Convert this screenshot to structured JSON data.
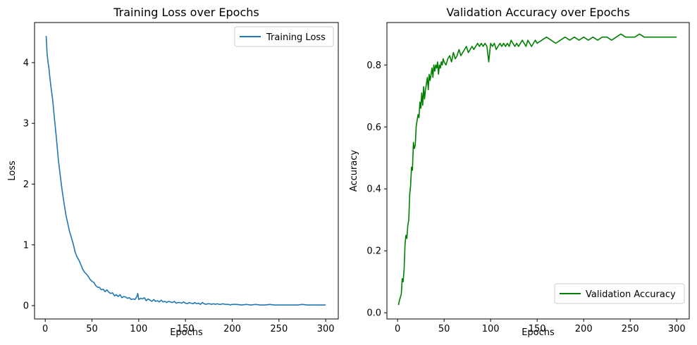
{
  "chart_data": [
    {
      "type": "line",
      "title": "Training Loss over Epochs",
      "xlabel": "Epochs",
      "ylabel": "Loss",
      "xlim": [
        -11.45,
        313.45
      ],
      "ylim": [
        -0.22,
        4.66
      ],
      "xticks": [
        0,
        50,
        100,
        150,
        200,
        250,
        300
      ],
      "yticks": [
        0,
        1,
        2,
        3,
        4
      ],
      "grid": false,
      "legend_position": "upper-right",
      "series": [
        {
          "name": "Training Loss",
          "color": "#1f77b4",
          "x": [
            1,
            2,
            3,
            4,
            5,
            6,
            8,
            10,
            12,
            14,
            16,
            18,
            20,
            22,
            24,
            26,
            28,
            30,
            32,
            34,
            36,
            38,
            40,
            42,
            44,
            46,
            48,
            50,
            52,
            54,
            56,
            58,
            60,
            62,
            64,
            66,
            68,
            70,
            72,
            74,
            76,
            78,
            80,
            82,
            84,
            86,
            88,
            90,
            92,
            94,
            96,
            98,
            99,
            100,
            102,
            104,
            106,
            108,
            110,
            112,
            114,
            116,
            118,
            120,
            122,
            124,
            126,
            128,
            130,
            132,
            134,
            136,
            138,
            140,
            142,
            144,
            146,
            148,
            150,
            152,
            154,
            156,
            158,
            160,
            162,
            164,
            166,
            168,
            170,
            172,
            174,
            176,
            178,
            180,
            182,
            184,
            186,
            188,
            190,
            192,
            194,
            196,
            198,
            200,
            205,
            210,
            215,
            220,
            225,
            230,
            235,
            240,
            245,
            250,
            255,
            260,
            265,
            270,
            275,
            280,
            285,
            290,
            295,
            300
          ],
          "y": [
            4.44,
            4.15,
            4.0,
            3.9,
            3.75,
            3.62,
            3.38,
            3.05,
            2.75,
            2.4,
            2.15,
            1.9,
            1.7,
            1.5,
            1.36,
            1.22,
            1.12,
            1.01,
            0.88,
            0.8,
            0.75,
            0.68,
            0.6,
            0.55,
            0.52,
            0.48,
            0.43,
            0.4,
            0.38,
            0.33,
            0.3,
            0.3,
            0.26,
            0.27,
            0.23,
            0.26,
            0.22,
            0.2,
            0.21,
            0.16,
            0.18,
            0.15,
            0.18,
            0.13,
            0.15,
            0.14,
            0.12,
            0.13,
            0.1,
            0.11,
            0.1,
            0.15,
            0.2,
            0.1,
            0.12,
            0.11,
            0.13,
            0.08,
            0.11,
            0.09,
            0.07,
            0.1,
            0.07,
            0.08,
            0.06,
            0.09,
            0.06,
            0.07,
            0.05,
            0.07,
            0.06,
            0.05,
            0.07,
            0.04,
            0.05,
            0.05,
            0.04,
            0.06,
            0.04,
            0.03,
            0.05,
            0.04,
            0.03,
            0.05,
            0.03,
            0.04,
            0.02,
            0.05,
            0.03,
            0.02,
            0.03,
            0.03,
            0.02,
            0.03,
            0.02,
            0.03,
            0.02,
            0.02,
            0.03,
            0.02,
            0.02,
            0.02,
            0.01,
            0.02,
            0.02,
            0.01,
            0.02,
            0.01,
            0.02,
            0.01,
            0.01,
            0.02,
            0.01,
            0.01,
            0.01,
            0.01,
            0.01,
            0.01,
            0.02,
            0.01,
            0.01,
            0.01,
            0.01,
            0.01
          ]
        }
      ]
    },
    {
      "type": "line",
      "title": "Validation Accuracy over Epochs",
      "xlabel": "Epochs",
      "ylabel": "Accuracy",
      "xlim": [
        -11.45,
        313.45
      ],
      "ylim": [
        -0.02,
        0.937
      ],
      "xticks": [
        0,
        50,
        100,
        150,
        200,
        250,
        300
      ],
      "yticks": [
        0.0,
        0.2,
        0.4,
        0.6,
        0.8
      ],
      "grid": false,
      "legend_position": "lower-right",
      "series": [
        {
          "name": "Validation Accuracy",
          "color": "#008000",
          "x": [
            1,
            2,
            3,
            4,
            5,
            6,
            7,
            8,
            9,
            10,
            11,
            12,
            13,
            14,
            15,
            16,
            17,
            18,
            19,
            20,
            21,
            22,
            23,
            24,
            25,
            26,
            27,
            28,
            29,
            30,
            31,
            32,
            33,
            34,
            35,
            36,
            37,
            38,
            39,
            40,
            41,
            42,
            43,
            44,
            45,
            46,
            47,
            48,
            49,
            50,
            52,
            54,
            56,
            58,
            60,
            62,
            64,
            66,
            68,
            70,
            72,
            74,
            76,
            78,
            80,
            82,
            84,
            86,
            88,
            90,
            92,
            94,
            96,
            98,
            100,
            102,
            104,
            106,
            108,
            110,
            112,
            114,
            116,
            118,
            120,
            122,
            124,
            126,
            128,
            130,
            132,
            134,
            136,
            138,
            140,
            142,
            144,
            146,
            148,
            150,
            155,
            160,
            165,
            170,
            175,
            180,
            185,
            190,
            195,
            200,
            205,
            210,
            215,
            220,
            225,
            230,
            235,
            240,
            245,
            250,
            255,
            260,
            265,
            270,
            275,
            280,
            285,
            290,
            295,
            300
          ],
          "y": [
            0.025,
            0.04,
            0.05,
            0.06,
            0.11,
            0.1,
            0.14,
            0.22,
            0.25,
            0.24,
            0.28,
            0.3,
            0.38,
            0.41,
            0.47,
            0.46,
            0.55,
            0.53,
            0.54,
            0.6,
            0.62,
            0.64,
            0.63,
            0.68,
            0.66,
            0.71,
            0.67,
            0.73,
            0.69,
            0.72,
            0.74,
            0.76,
            0.72,
            0.77,
            0.75,
            0.77,
            0.79,
            0.76,
            0.8,
            0.78,
            0.8,
            0.79,
            0.81,
            0.77,
            0.8,
            0.79,
            0.81,
            0.8,
            0.82,
            0.81,
            0.8,
            0.82,
            0.83,
            0.81,
            0.84,
            0.82,
            0.83,
            0.85,
            0.83,
            0.84,
            0.85,
            0.86,
            0.84,
            0.85,
            0.86,
            0.85,
            0.86,
            0.87,
            0.86,
            0.87,
            0.86,
            0.87,
            0.86,
            0.81,
            0.87,
            0.86,
            0.87,
            0.85,
            0.86,
            0.87,
            0.86,
            0.87,
            0.86,
            0.87,
            0.86,
            0.88,
            0.87,
            0.86,
            0.87,
            0.86,
            0.87,
            0.88,
            0.87,
            0.86,
            0.88,
            0.87,
            0.86,
            0.87,
            0.88,
            0.87,
            0.88,
            0.89,
            0.88,
            0.87,
            0.88,
            0.89,
            0.88,
            0.89,
            0.88,
            0.89,
            0.88,
            0.89,
            0.88,
            0.89,
            0.89,
            0.88,
            0.89,
            0.9,
            0.89,
            0.89,
            0.89,
            0.9,
            0.89,
            0.89,
            0.89,
            0.89,
            0.89,
            0.89,
            0.89,
            0.89
          ]
        }
      ]
    }
  ]
}
